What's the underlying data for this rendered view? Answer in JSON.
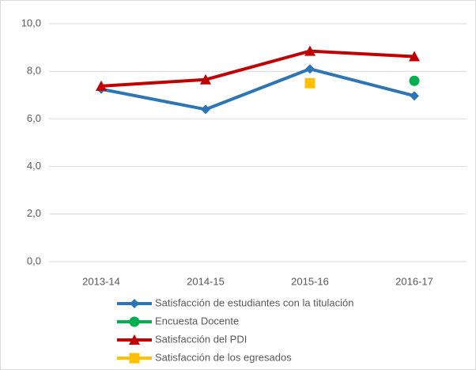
{
  "chart_data": {
    "type": "line",
    "categories": [
      "2013-14",
      "2014-15",
      "2015-16",
      "2016-17"
    ],
    "series": [
      {
        "name": "Satisfacción de estudiantes con la titulación",
        "color": "#2e75b6",
        "marker": "diamond",
        "values": [
          7.25,
          6.4,
          8.1,
          6.97
        ]
      },
      {
        "name": "Encuesta Docente",
        "color": "#00b050",
        "marker": "circle",
        "values": [
          null,
          null,
          null,
          7.6
        ]
      },
      {
        "name": "Satisfacción del PDI",
        "color": "#c00000",
        "marker": "triangle",
        "values": [
          7.38,
          7.65,
          8.85,
          8.62
        ]
      },
      {
        "name": "Satisfacción de los egresados",
        "color": "#ffc000",
        "marker": "square",
        "values": [
          null,
          null,
          7.5,
          null
        ]
      }
    ],
    "ylim": [
      0,
      10
    ],
    "yticks": [
      {
        "value": 0,
        "label": "0,0"
      },
      {
        "value": 2,
        "label": "2,0"
      },
      {
        "value": 4,
        "label": "4,0"
      },
      {
        "value": 6,
        "label": "6,0"
      },
      {
        "value": 8,
        "label": "8,0"
      },
      {
        "value": 10,
        "label": "10,0"
      }
    ],
    "grid": true,
    "legend": "bottom"
  }
}
